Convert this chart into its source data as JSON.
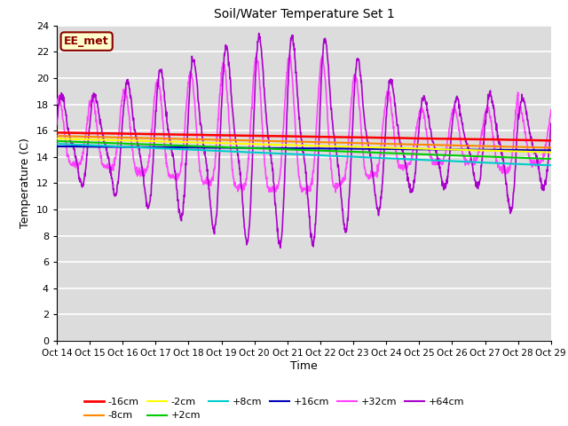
{
  "title": "Soil/Water Temperature Set 1",
  "xlabel": "Time",
  "ylabel": "Temperature (C)",
  "xlim": [
    0,
    15
  ],
  "ylim": [
    0,
    24
  ],
  "yticks": [
    0,
    2,
    4,
    6,
    8,
    10,
    12,
    14,
    16,
    18,
    20,
    22,
    24
  ],
  "xtick_labels": [
    "Oct 14",
    "Oct 15",
    "Oct 16",
    "Oct 17",
    "Oct 18",
    "Oct 19",
    "Oct 20",
    "Oct 21",
    "Oct 22",
    "Oct 23",
    "Oct 24",
    "Oct 25",
    "Oct 26",
    "Oct 27",
    "Oct 28",
    "Oct 29"
  ],
  "bg_color": "#dcdcdc",
  "grid_color": "#ffffff",
  "fig_color": "#ffffff",
  "annotation_text": "EE_met",
  "annotation_color": "#8b0000",
  "annotation_bg": "#ffffcc",
  "series": {
    "-16cm": {
      "color": "#ff0000",
      "linewidth": 1.8,
      "zorder": 5
    },
    "-8cm": {
      "color": "#ff8800",
      "linewidth": 1.5,
      "zorder": 5
    },
    "-2cm": {
      "color": "#ffff00",
      "linewidth": 1.5,
      "zorder": 5
    },
    "+2cm": {
      "color": "#00cc00",
      "linewidth": 1.5,
      "zorder": 5
    },
    "+8cm": {
      "color": "#00cccc",
      "linewidth": 1.5,
      "zorder": 5
    },
    "+16cm": {
      "color": "#0000bb",
      "linewidth": 1.5,
      "zorder": 5
    },
    "+32cm": {
      "color": "#ff44ff",
      "linewidth": 1.2,
      "zorder": 3
    },
    "+64cm": {
      "color": "#aa00cc",
      "linewidth": 1.2,
      "zorder": 4
    }
  }
}
